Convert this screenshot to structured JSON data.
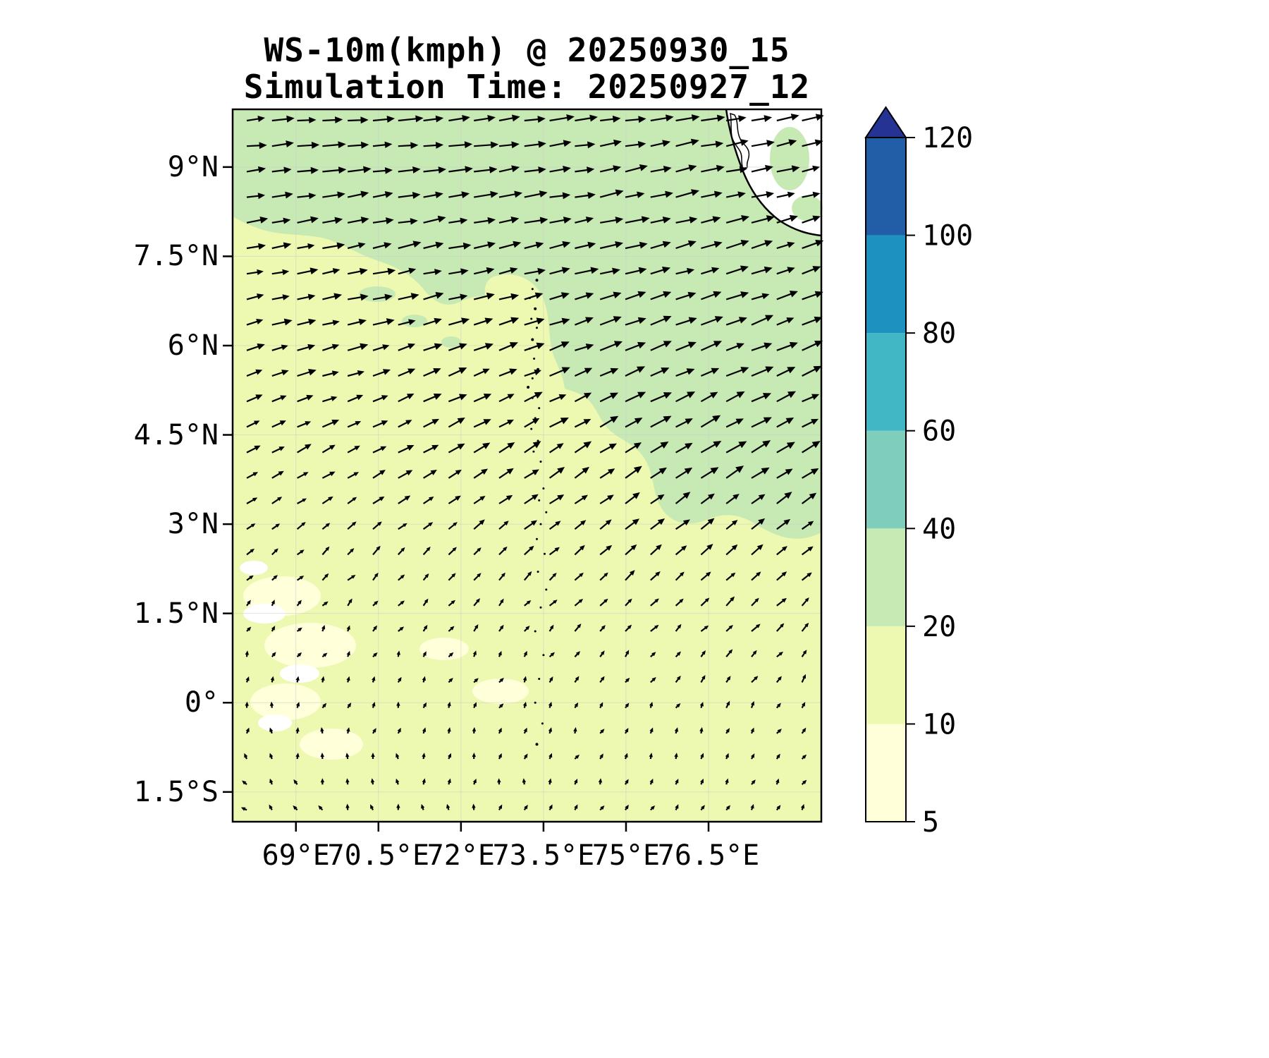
{
  "chart_data": {
    "type": "heatmap",
    "title": "WS-10m(kmph) @ 20250930_15",
    "subtitle": "Simulation Time: 20250927_12",
    "variable": "10 m wind speed",
    "units": "kmph",
    "valid_time": "20250930_15",
    "simulation_time": "20250927_12",
    "x_axis": {
      "tick_labels": [
        "69°E",
        "70.5°E",
        "72°E",
        "73.5°E",
        "75°E",
        "76.5°E"
      ],
      "tick_values": [
        69,
        70.5,
        72,
        73.5,
        75,
        76.5
      ],
      "range": [
        67.85,
        78.55
      ]
    },
    "y_axis": {
      "tick_labels": [
        "9°N",
        "7.5°N",
        "6°N",
        "4.5°N",
        "3°N",
        "1.5°N",
        "0°",
        "1.5°S"
      ],
      "tick_values": [
        9,
        7.5,
        6,
        4.5,
        3,
        1.5,
        0,
        -1.5
      ],
      "range": [
        -2.0,
        9.97
      ]
    },
    "colorbar": {
      "levels": [
        5,
        10,
        20,
        40,
        60,
        80,
        100,
        120
      ],
      "tick_labels": [
        "5",
        "10",
        "20",
        "40",
        "60",
        "80",
        "100",
        "120"
      ],
      "colors": [
        "#ffffd9",
        "#edf8b1",
        "#c7e9b4",
        "#7fcdbb",
        "#41b6c4",
        "#1d91c0",
        "#225ea8"
      ],
      "extend_color": "#253494"
    },
    "map_colors": {
      "below_5": "#ffffff",
      "land": "#ffffff",
      "coastline": "#000000",
      "gridline": "#cccccc",
      "arrow": "#000000",
      "border": "#000000"
    },
    "wind_field": {
      "lons": [
        67.85,
        69.5,
        71,
        72.5,
        74,
        75.5,
        77,
        78.55
      ],
      "lats": [
        10,
        8.5,
        7,
        5.5,
        4,
        2.5,
        1,
        -0.5,
        -2
      ],
      "u": [
        [
          26,
          27,
          28,
          28,
          28,
          27,
          26,
          25
        ],
        [
          25,
          26,
          27,
          27,
          27,
          27,
          26,
          25
        ],
        [
          23,
          24,
          25,
          25,
          26,
          26,
          25,
          24
        ],
        [
          21,
          22,
          22,
          23,
          24,
          25,
          25,
          24
        ],
        [
          15,
          16,
          17,
          18,
          20,
          22,
          22,
          21
        ],
        [
          8,
          9,
          10,
          11,
          13,
          14,
          14,
          13
        ],
        [
          3,
          4,
          4,
          5,
          6,
          7,
          8,
          8
        ],
        [
          0,
          1,
          1,
          2,
          3,
          3,
          4,
          4
        ],
        [
          -5,
          -3,
          -1,
          0,
          2,
          3,
          4,
          4
        ]
      ],
      "v": [
        [
          2,
          2,
          3,
          3,
          4,
          4,
          5,
          5
        ],
        [
          3,
          4,
          4,
          5,
          5,
          6,
          6,
          7
        ],
        [
          5,
          5,
          6,
          6,
          7,
          8,
          8,
          8
        ],
        [
          7,
          7,
          8,
          9,
          10,
          11,
          11,
          10
        ],
        [
          8,
          9,
          10,
          11,
          13,
          14,
          14,
          13
        ],
        [
          7,
          8,
          9,
          10,
          11,
          12,
          12,
          11
        ],
        [
          6,
          6,
          7,
          7,
          8,
          8,
          9,
          9
        ],
        [
          5,
          5,
          5,
          6,
          6,
          6,
          7,
          7
        ],
        [
          4,
          4,
          5,
          5,
          5,
          6,
          6,
          6
        ]
      ]
    },
    "islands": [
      [
        73.38,
        7.1,
        2
      ],
      [
        73.3,
        6.95,
        1.5
      ],
      [
        73.25,
        6.8,
        1.5
      ],
      [
        73.35,
        6.62,
        2
      ],
      [
        73.28,
        6.45,
        1.5
      ],
      [
        73.38,
        6.3,
        1.5
      ],
      [
        73.3,
        6.1,
        2
      ],
      [
        73.25,
        5.95,
        1.5
      ],
      [
        73.33,
        5.78,
        1.5
      ],
      [
        73.4,
        5.6,
        2
      ],
      [
        73.3,
        5.45,
        1.5
      ],
      [
        73.22,
        5.3,
        2
      ],
      [
        73.3,
        5.12,
        1.5
      ],
      [
        73.42,
        4.95,
        1.5
      ],
      [
        73.35,
        4.78,
        1.5
      ],
      [
        73.28,
        4.6,
        1.5
      ],
      [
        73.4,
        4.4,
        1.5
      ],
      [
        73.32,
        4.22,
        1.5
      ],
      [
        73.45,
        4.05,
        1.5
      ],
      [
        73.35,
        3.85,
        1.5
      ],
      [
        73.5,
        3.6,
        1.5
      ],
      [
        73.42,
        3.4,
        1.5
      ],
      [
        73.55,
        3.2,
        1.5
      ],
      [
        73.45,
        3.0,
        1.5
      ],
      [
        73.38,
        2.75,
        1.5
      ],
      [
        73.52,
        2.5,
        1.5
      ],
      [
        73.4,
        2.2,
        1.5
      ],
      [
        73.55,
        1.9,
        1.5
      ],
      [
        73.45,
        1.6,
        1.5
      ],
      [
        73.35,
        1.2,
        1.5
      ],
      [
        73.5,
        0.8,
        1.5
      ],
      [
        73.42,
        0.4,
        1.5
      ],
      [
        73.35,
        0.0,
        1.5
      ],
      [
        73.48,
        -0.35,
        1.5
      ],
      [
        73.38,
        -0.7,
        2
      ]
    ]
  }
}
